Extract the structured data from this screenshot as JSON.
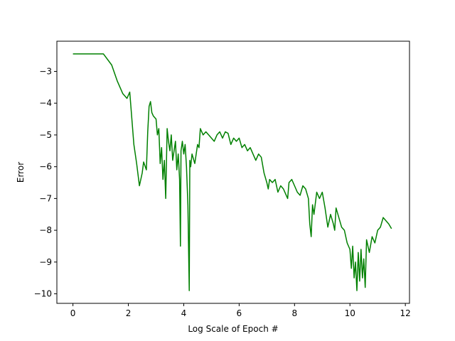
{
  "chart_data": {
    "type": "line",
    "title": "",
    "xlabel": "Log Scale of Epoch #",
    "ylabel": "Error",
    "xlim": [
      -0.58,
      12.15
    ],
    "ylim": [
      -10.3,
      -2.05
    ],
    "x_ticks": [
      0,
      2,
      4,
      6,
      8,
      10,
      12
    ],
    "x_tick_labels": [
      "0",
      "2",
      "4",
      "6",
      "8",
      "10",
      "12"
    ],
    "y_ticks": [
      -10,
      -9,
      -8,
      -7,
      -6,
      -5,
      -4,
      -3
    ],
    "y_tick_labels": [
      "−10",
      "−9",
      "−8",
      "−7",
      "−6",
      "−5",
      "−4",
      "−3"
    ],
    "grid": false,
    "legend": "none",
    "series": [
      {
        "color": "#008000",
        "x": [
          0,
          0.5,
          1.1,
          1.4,
          1.6,
          1.8,
          1.95,
          2.05,
          2.2,
          2.3,
          2.4,
          2.5,
          2.55,
          2.65,
          2.7,
          2.75,
          2.8,
          2.85,
          2.9,
          3.0,
          3.05,
          3.1,
          3.15,
          3.2,
          3.25,
          3.3,
          3.35,
          3.4,
          3.45,
          3.5,
          3.55,
          3.6,
          3.7,
          3.75,
          3.8,
          3.85,
          3.88,
          3.9,
          3.95,
          4.0,
          4.05,
          4.1,
          4.15,
          4.2,
          4.22,
          4.25,
          4.3,
          4.4,
          4.5,
          4.55,
          4.6,
          4.7,
          4.8,
          4.9,
          5.0,
          5.1,
          5.2,
          5.3,
          5.4,
          5.5,
          5.6,
          5.7,
          5.8,
          5.9,
          6.0,
          6.1,
          6.2,
          6.3,
          6.4,
          6.5,
          6.6,
          6.7,
          6.8,
          6.9,
          7.0,
          7.05,
          7.1,
          7.2,
          7.3,
          7.4,
          7.5,
          7.6,
          7.7,
          7.75,
          7.8,
          7.9,
          8.0,
          8.1,
          8.2,
          8.3,
          8.4,
          8.5,
          8.55,
          8.6,
          8.65,
          8.7,
          8.8,
          8.9,
          9.0,
          9.1,
          9.2,
          9.3,
          9.4,
          9.45,
          9.5,
          9.6,
          9.7,
          9.8,
          9.9,
          10.0,
          10.05,
          10.1,
          10.15,
          10.2,
          10.25,
          10.3,
          10.35,
          10.4,
          10.45,
          10.5,
          10.55,
          10.6,
          10.7,
          10.8,
          10.9,
          11.0,
          11.1,
          11.2,
          11.3,
          11.4,
          11.5
        ],
        "y": [
          -2.45,
          -2.45,
          -2.45,
          -2.8,
          -3.3,
          -3.7,
          -3.85,
          -3.65,
          -5.3,
          -5.9,
          -6.6,
          -6.2,
          -5.85,
          -6.1,
          -4.9,
          -4.1,
          -3.95,
          -4.3,
          -4.4,
          -4.5,
          -5.0,
          -4.8,
          -5.9,
          -5.4,
          -6.4,
          -5.8,
          -7.0,
          -4.8,
          -5.2,
          -5.5,
          -5.0,
          -5.8,
          -5.2,
          -6.1,
          -5.6,
          -6.4,
          -8.5,
          -5.5,
          -5.2,
          -5.6,
          -5.3,
          -6.0,
          -7.2,
          -9.9,
          -5.8,
          -6.0,
          -5.6,
          -5.9,
          -5.3,
          -5.4,
          -4.8,
          -5.0,
          -4.9,
          -5.0,
          -5.1,
          -5.2,
          -5.0,
          -4.9,
          -5.1,
          -4.9,
          -4.95,
          -5.3,
          -5.1,
          -5.2,
          -5.1,
          -5.4,
          -5.3,
          -5.5,
          -5.4,
          -5.6,
          -5.8,
          -5.6,
          -5.7,
          -6.2,
          -6.5,
          -6.7,
          -6.4,
          -6.5,
          -6.4,
          -6.8,
          -6.6,
          -6.7,
          -6.9,
          -7.0,
          -6.5,
          -6.4,
          -6.6,
          -6.8,
          -6.9,
          -6.6,
          -6.7,
          -7.0,
          -7.8,
          -8.2,
          -7.2,
          -7.5,
          -6.8,
          -7.0,
          -6.8,
          -7.3,
          -7.9,
          -7.5,
          -7.8,
          -8.0,
          -7.3,
          -7.6,
          -7.9,
          -8.0,
          -8.4,
          -8.6,
          -9.2,
          -8.5,
          -9.5,
          -9.0,
          -9.9,
          -8.7,
          -9.6,
          -8.6,
          -9.5,
          -8.9,
          -9.8,
          -8.3,
          -8.7,
          -8.2,
          -8.4,
          -8.0,
          -7.9,
          -7.6,
          -7.7,
          -7.8,
          -7.95
        ]
      }
    ]
  }
}
